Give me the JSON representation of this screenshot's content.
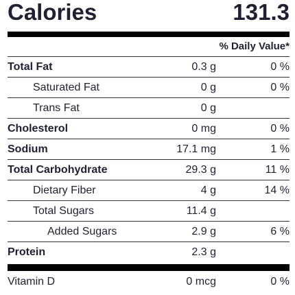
{
  "calories": {
    "label": "Calories",
    "value": "131.3"
  },
  "daily_value_header": "% Daily Value*",
  "rows": [
    {
      "name": "Total Fat",
      "amount": "0.3 g",
      "dv": "0 %"
    },
    {
      "name": "Saturated Fat",
      "amount": "0 g",
      "dv": "0 %"
    },
    {
      "name": "Trans Fat",
      "amount": "0 g",
      "dv": ""
    },
    {
      "name": "Cholesterol",
      "amount": "0 mg",
      "dv": "0 %"
    },
    {
      "name": "Sodium",
      "amount": "17.1 mg",
      "dv": "1 %"
    },
    {
      "name": "Total Carbohydrate",
      "amount": "29.3 g",
      "dv": "11 %"
    },
    {
      "name": "Dietary Fiber",
      "amount": "4 g",
      "dv": "14 %"
    },
    {
      "name": "Total Sugars",
      "amount": "11.4 g",
      "dv": ""
    },
    {
      "name": "Added Sugars",
      "amount": "2.9 g",
      "dv": "6 %"
    },
    {
      "name": "Protein",
      "amount": "2.3 g",
      "dv": ""
    }
  ],
  "vitamins": [
    {
      "name": "Vitamin D",
      "amount": "0 mcg",
      "dv": "0 %"
    }
  ]
}
